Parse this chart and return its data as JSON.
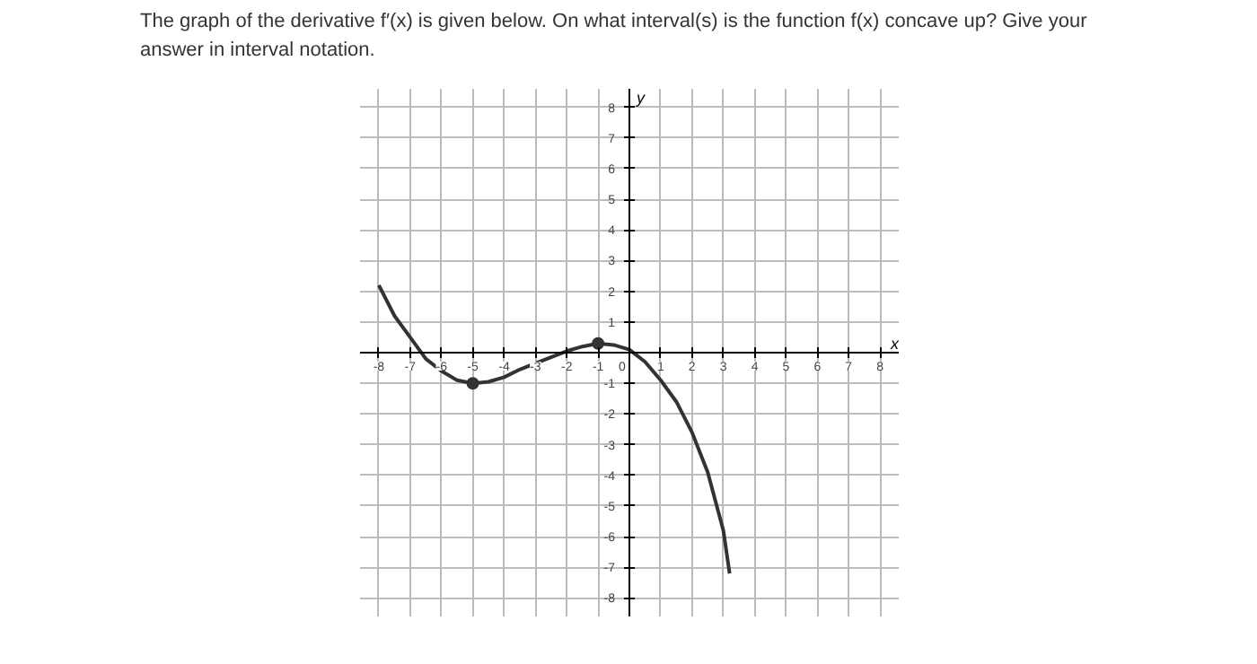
{
  "chart_data": {
    "type": "line",
    "title": "The graph of the derivative f′(x) is given below. On what interval(s) is the function f(x) concave up? Give your answer in interval notation.",
    "xlabel": "x",
    "ylabel": "y",
    "xlim": [
      -8.6,
      8.6
    ],
    "ylim": [
      -8.6,
      8.6
    ],
    "xticks": [
      -8,
      -7,
      -6,
      -5,
      -4,
      -3,
      -2,
      -1,
      0,
      1,
      2,
      3,
      4,
      5,
      6,
      7,
      8
    ],
    "yticks": [
      -8,
      -7,
      -6,
      -5,
      -4,
      -3,
      -2,
      -1,
      1,
      2,
      3,
      4,
      5,
      6,
      7,
      8
    ],
    "grid": true,
    "series": [
      {
        "color": "#333333",
        "x": [
          -8,
          -7.5,
          -7,
          -6.5,
          -6,
          -5.5,
          -5,
          -4.5,
          -4,
          -3.5,
          -3,
          -2.5,
          -2,
          -1.5,
          -1,
          -0.5,
          0,
          0.5,
          1,
          1.5,
          2,
          2.5,
          3,
          3.2
        ],
        "values": [
          2.2,
          1.2,
          0.5,
          -0.2,
          -0.6,
          -0.9,
          -1,
          -0.95,
          -0.8,
          -0.55,
          -0.35,
          -0.15,
          0.05,
          0.2,
          0.3,
          0.25,
          0.1,
          -0.3,
          -0.9,
          -1.6,
          -2.6,
          -3.9,
          -5.8,
          -7.2
        ]
      },
      {
        "type": "scatter",
        "marker": "circle",
        "color": "#333333",
        "x": [
          -5,
          -1
        ],
        "values": [
          -1,
          0.3
        ]
      }
    ]
  }
}
